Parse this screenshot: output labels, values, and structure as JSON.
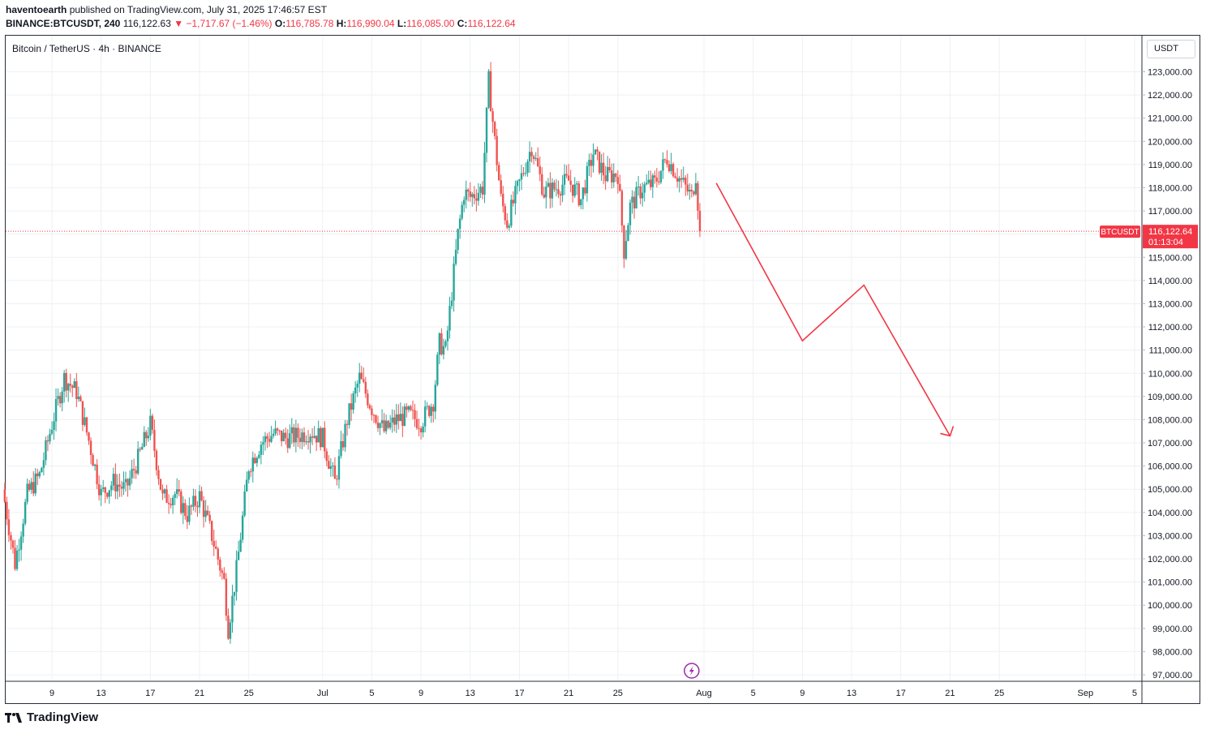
{
  "header": {
    "author": "haventoearth",
    "published_text": "published on TradingView.com, July 31, 2025 17:46:57 EST",
    "symbol": "BINANCE:BTCUSDT, 240",
    "last": "116,122.63",
    "change": "−1,717.67 (−1.46%)",
    "o_label": "O:",
    "o_value": "116,785.78",
    "h_label": "H:",
    "h_value": "116,990.04",
    "l_label": "L:",
    "l_value": "116,085.00",
    "c_label": "C:",
    "c_value": "116,122.64"
  },
  "legend": "Bitcoin / TetherUS · 4h · BINANCE",
  "axis_unit": "USDT",
  "price_tag": {
    "symbol": "BTCUSDT",
    "price": "116,122.64",
    "countdown": "01:13:04"
  },
  "footer": {
    "brand": "TradingView"
  },
  "colors": {
    "up": "#26a69a",
    "down": "#ef5350",
    "forecast": "#f23645",
    "grid": "#eef0f3",
    "flash": "#9c27b0"
  },
  "chart_data": {
    "type": "line",
    "series_kind": "candlestick",
    "ylim": [
      97000,
      123000
    ],
    "y_ticks": [
      "97,000.00",
      "98,000.00",
      "99,000.00",
      "100,000.00",
      "101,000.00",
      "102,000.00",
      "103,000.00",
      "104,000.00",
      "105,000.00",
      "106,000.00",
      "107,000.00",
      "108,000.00",
      "109,000.00",
      "110,000.00",
      "111,000.00",
      "112,000.00",
      "113,000.00",
      "114,000.00",
      "115,000.00",
      "116,000.00",
      "117,000.00",
      "118,000.00",
      "119,000.00",
      "120,000.00",
      "121,000.00",
      "122,000.00",
      "123,000.00"
    ],
    "x_ticks": [
      "9",
      "13",
      "17",
      "21",
      "25",
      "Jul",
      "5",
      "9",
      "13",
      "17",
      "21",
      "25",
      "Aug",
      "5",
      "9",
      "13",
      "17",
      "21",
      "25",
      "Sep",
      "5"
    ],
    "x_tick_dates": [
      "2025-06-09",
      "2025-06-13",
      "2025-06-17",
      "2025-06-21",
      "2025-06-25",
      "2025-07-01",
      "2025-07-05",
      "2025-07-09",
      "2025-07-13",
      "2025-07-17",
      "2025-07-21",
      "2025-07-25",
      "2025-08-01",
      "2025-08-05",
      "2025-08-09",
      "2025-08-13",
      "2025-08-17",
      "2025-08-21",
      "2025-08-25",
      "2025-09-01",
      "2025-09-05"
    ],
    "x_range": [
      "2025-06-05",
      "2025-09-05"
    ],
    "last_price": 116122.64,
    "price_path": [
      [
        "2025-06-05",
        105000
      ],
      [
        "2025-06-06",
        101800
      ],
      [
        "2025-06-07",
        104800
      ],
      [
        "2025-06-08",
        105600
      ],
      [
        "2025-06-09",
        107800
      ],
      [
        "2025-06-10",
        109800
      ],
      [
        "2025-06-11",
        109200
      ],
      [
        "2025-06-12",
        107100
      ],
      [
        "2025-06-13",
        104800
      ],
      [
        "2025-06-14",
        105300
      ],
      [
        "2025-06-15",
        105000
      ],
      [
        "2025-06-16",
        106300
      ],
      [
        "2025-06-17",
        107800
      ],
      [
        "2025-06-18",
        104600
      ],
      [
        "2025-06-19",
        104800
      ],
      [
        "2025-06-20",
        103900
      ],
      [
        "2025-06-21",
        104700
      ],
      [
        "2025-06-22",
        103000
      ],
      [
        "2025-06-23",
        101000
      ],
      [
        "2025-06-23T08",
        99000
      ],
      [
        "2025-06-24",
        101500
      ],
      [
        "2025-06-25",
        106000
      ],
      [
        "2025-06-26",
        107000
      ],
      [
        "2025-06-27",
        107400
      ],
      [
        "2025-06-28",
        107200
      ],
      [
        "2025-06-29",
        107300
      ],
      [
        "2025-06-30",
        107500
      ],
      [
        "2025-07-01",
        107200
      ],
      [
        "2025-07-02",
        105300
      ],
      [
        "2025-07-03",
        108000
      ],
      [
        "2025-07-04",
        109800
      ],
      [
        "2025-07-05",
        108500
      ],
      [
        "2025-07-06",
        107500
      ],
      [
        "2025-07-07",
        108000
      ],
      [
        "2025-07-08",
        108200
      ],
      [
        "2025-07-09",
        107900
      ],
      [
        "2025-07-10",
        108800
      ],
      [
        "2025-07-10T12",
        111300
      ],
      [
        "2025-07-11",
        111000
      ],
      [
        "2025-07-12",
        116000
      ],
      [
        "2025-07-12T12",
        117800
      ],
      [
        "2025-07-13",
        117600
      ],
      [
        "2025-07-14",
        118000
      ],
      [
        "2025-07-14T12",
        122600
      ],
      [
        "2025-07-15",
        120000
      ],
      [
        "2025-07-15T12",
        117500
      ],
      [
        "2025-07-16",
        116500
      ],
      [
        "2025-07-17",
        118200
      ],
      [
        "2025-07-18",
        119800
      ],
      [
        "2025-07-19",
        117800
      ],
      [
        "2025-07-20",
        118000
      ],
      [
        "2025-07-21",
        118300
      ],
      [
        "2025-07-22",
        117500
      ],
      [
        "2025-07-23",
        119500
      ],
      [
        "2025-07-24",
        118500
      ],
      [
        "2025-07-25",
        118600
      ],
      [
        "2025-07-25T12",
        115300
      ],
      [
        "2025-07-26",
        117200
      ],
      [
        "2025-07-27",
        118000
      ],
      [
        "2025-07-28",
        118200
      ],
      [
        "2025-07-29",
        119300
      ],
      [
        "2025-07-30",
        118400
      ],
      [
        "2025-07-31",
        117600
      ],
      [
        "2025-07-31T08",
        118600
      ],
      [
        "2025-07-31T16",
        116122.64
      ]
    ],
    "forecast_path": [
      [
        "2025-08-02",
        118200
      ],
      [
        "2025-08-09",
        111400
      ],
      [
        "2025-08-14",
        113800
      ],
      [
        "2025-08-21",
        107300
      ]
    ]
  }
}
